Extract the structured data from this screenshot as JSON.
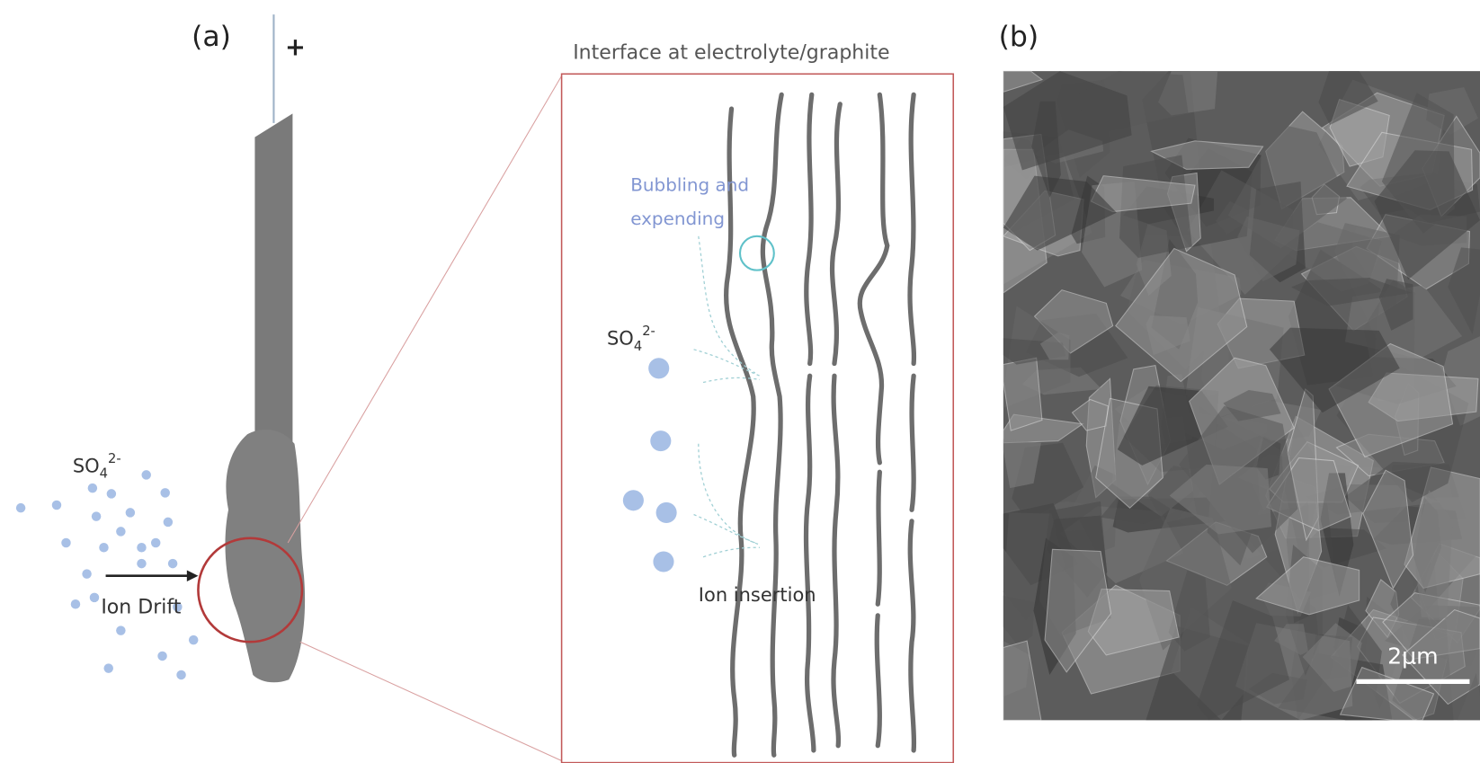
{
  "panel_a": {
    "label": "(a)",
    "polarity": "+",
    "ion": {
      "base": "SO",
      "sub": "4",
      "sup": "2-"
    },
    "drift_label": "Ion Drift"
  },
  "inset": {
    "title": "Interface at electrolyte/graphite",
    "bubbling": [
      "Bubbling and",
      "expending"
    ],
    "ion": {
      "base": "SO",
      "sub": "4",
      "sup": "2-"
    },
    "insertion_label": "Ion insertion"
  },
  "panel_b": {
    "label": "(b)",
    "scale_bar": "2μm"
  }
}
